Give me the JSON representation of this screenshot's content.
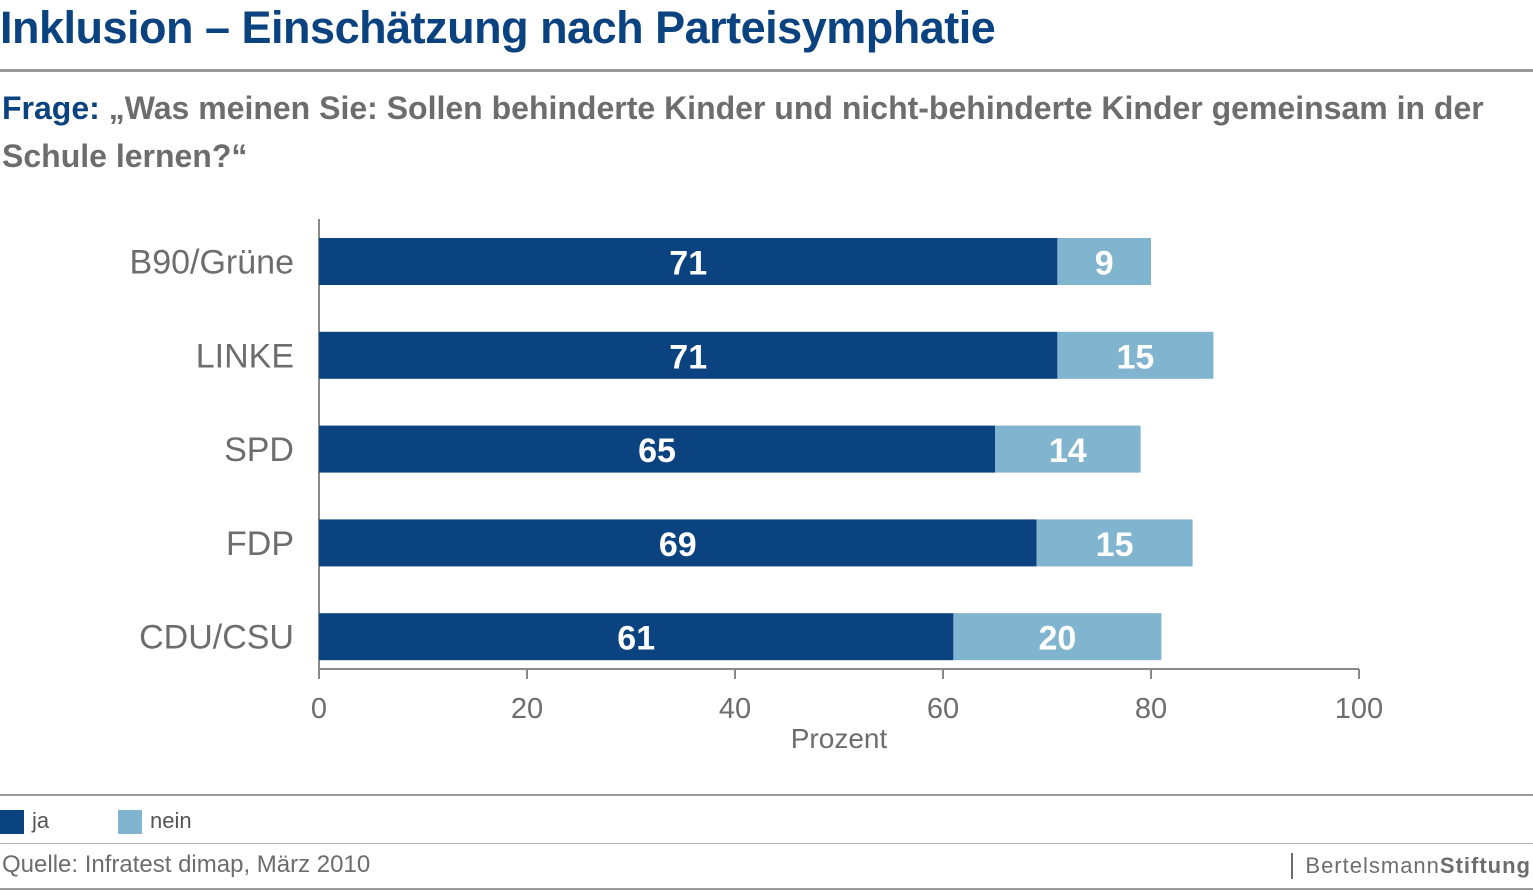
{
  "header": {
    "title": "Inklusion – Einschätzung nach Parteisymphatie",
    "question_label": "Frage:",
    "question_text": "„Was meinen Sie: Sollen behinderte Kinder und nicht-behinderte Kinder gemeinsam in der Schule lernen?“"
  },
  "legend": {
    "items": [
      {
        "label": "ja",
        "color": "#0a437f"
      },
      {
        "label": "nein",
        "color": "#80b4cf"
      }
    ]
  },
  "footer": {
    "source": "Quelle: Infratest dimap, März 2010",
    "logo_regular": "Bertelsmann",
    "logo_bold": "Stiftung"
  },
  "chart_data": {
    "type": "bar",
    "orientation": "horizontal",
    "stacked": true,
    "categories": [
      "B90/Grüne",
      "LINKE",
      "SPD",
      "FDP",
      "CDU/CSU"
    ],
    "series": [
      {
        "name": "ja",
        "values": [
          71,
          71,
          65,
          69,
          61
        ],
        "color": "#0a437f"
      },
      {
        "name": "nein",
        "values": [
          9,
          15,
          14,
          15,
          20
        ],
        "color": "#80b4cf"
      }
    ],
    "xlabel": "Prozent",
    "xlim": [
      0,
      100
    ],
    "xticks": [
      0,
      20,
      40,
      60,
      80,
      100
    ],
    "data_labels": true,
    "grid": false,
    "legend_position": "bottom-left"
  }
}
